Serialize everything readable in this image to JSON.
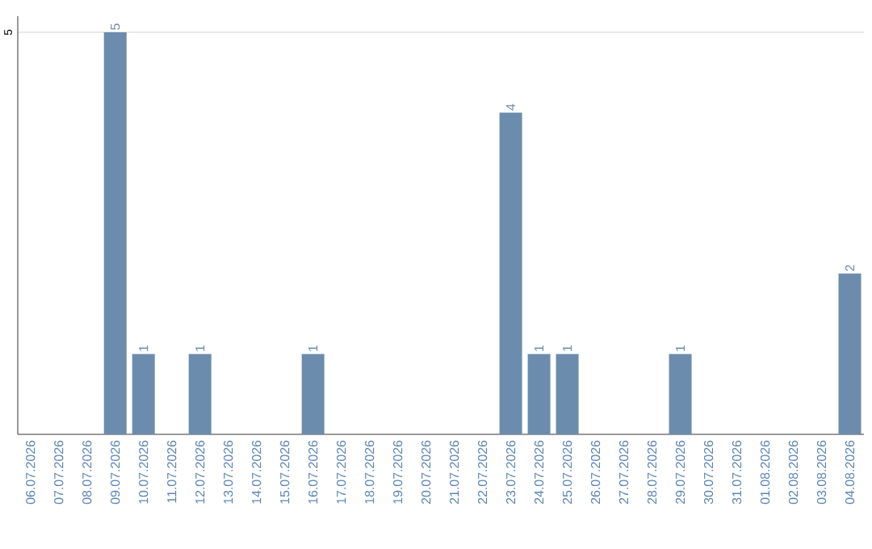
{
  "chart_data": {
    "type": "bar",
    "categories": [
      "06.07.2026",
      "07.07.2026",
      "08.07.2026",
      "09.07.2026",
      "10.07.2026",
      "11.07.2026",
      "12.07.2026",
      "13.07.2026",
      "14.07.2026",
      "15.07.2026",
      "16.07.2026",
      "17.07.2026",
      "18.07.2026",
      "19.07.2026",
      "20.07.2026",
      "21.07.2026",
      "22.07.2026",
      "23.07.2026",
      "24.07.2026",
      "25.07.2026",
      "26.07.2026",
      "27.07.2026",
      "28.07.2026",
      "29.07.2026",
      "30.07.2026",
      "31.07.2026",
      "01.08.2026",
      "02.08.2026",
      "03.08.2026",
      "04.08.2026"
    ],
    "values": [
      0,
      0,
      0,
      5,
      1,
      0,
      1,
      0,
      0,
      0,
      1,
      0,
      0,
      0,
      0,
      0,
      0,
      4,
      1,
      1,
      0,
      0,
      0,
      1,
      0,
      0,
      0,
      0,
      0,
      2
    ],
    "value_labels": [
      null,
      null,
      null,
      "5",
      "1",
      null,
      "1",
      null,
      null,
      null,
      "1",
      null,
      null,
      null,
      null,
      null,
      null,
      "4",
      "1",
      "1",
      null,
      null,
      null,
      "1",
      null,
      null,
      null,
      null,
      null,
      "2"
    ],
    "color": "#6b8cad",
    "ylim": [
      0,
      5.2
    ],
    "yticks": [
      5
    ],
    "grid": "y"
  }
}
